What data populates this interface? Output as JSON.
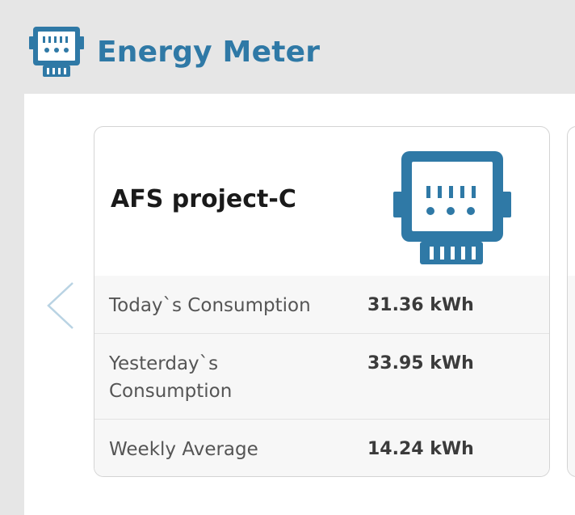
{
  "header": {
    "title": "Energy Meter",
    "icon": "energy-meter-icon",
    "accent_color": "#2f79a6"
  },
  "carousel": {
    "prev_icon": "chevron-left-icon"
  },
  "meter_card": {
    "title": "AFS project-C",
    "icon": "energy-meter-icon",
    "rows": [
      {
        "label": "Today`s Consumption",
        "value": "31.36 kWh"
      },
      {
        "label": "Yesterday`s Consumption",
        "value": "33.95 kWh"
      },
      {
        "label": "Weekly Average",
        "value": "14.24 kWh"
      }
    ]
  }
}
